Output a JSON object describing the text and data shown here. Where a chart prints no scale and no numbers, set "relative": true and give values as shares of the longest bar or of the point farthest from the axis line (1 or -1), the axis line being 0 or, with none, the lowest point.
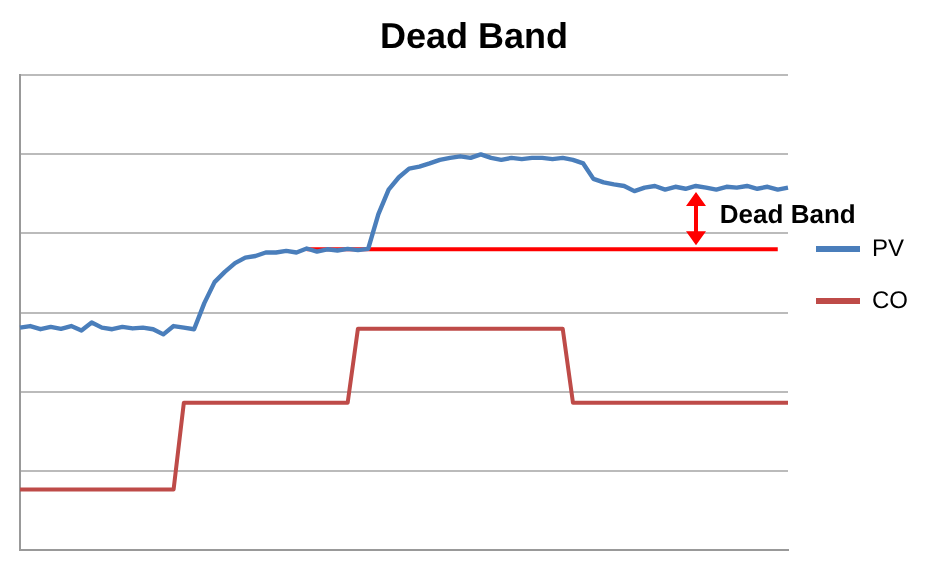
{
  "chart_data": {
    "type": "line",
    "title": "Dead Band",
    "relative": true,
    "grid": "y",
    "legend": "right",
    "marker": "none",
    "line_style": "solid",
    "annotations": [
      "Dead Band"
    ],
    "categories": [
      null,
      null,
      null,
      null,
      null,
      null,
      null,
      null,
      null,
      null,
      null,
      null,
      null,
      null,
      null,
      null,
      null,
      null,
      null,
      null,
      null,
      null,
      null,
      null,
      null,
      null,
      null,
      null,
      null,
      null,
      null,
      null,
      null,
      null,
      null,
      null,
      null,
      null,
      null,
      null,
      null,
      null,
      null,
      null,
      null,
      null,
      null,
      null,
      null,
      null,
      null,
      null,
      null,
      null,
      null,
      null,
      null,
      null,
      null,
      null,
      null,
      null,
      null,
      null,
      null,
      null,
      null,
      null,
      null,
      null,
      null,
      null,
      null,
      null,
      null,
      null
    ],
    "series": [
      {
        "name": "PV",
        "color": "#4a7ebb",
        "values": [
          0.562,
          0.566,
          0.558,
          0.564,
          0.559,
          0.566,
          0.555,
          0.575,
          0.562,
          0.558,
          0.564,
          0.56,
          0.562,
          0.558,
          0.545,
          0.566,
          0.562,
          0.558,
          0.624,
          0.677,
          0.703,
          0.725,
          0.739,
          0.743,
          0.752,
          0.752,
          0.756,
          0.752,
          0.762,
          0.754,
          0.76,
          0.757,
          0.761,
          0.758,
          0.761,
          0.849,
          0.911,
          0.942,
          0.964,
          0.969,
          0.977,
          0.986,
          0.991,
          0.995,
          0.991,
          1.0,
          0.991,
          0.986,
          0.991,
          0.988,
          0.991,
          0.991,
          0.988,
          0.991,
          0.986,
          0.977,
          0.938,
          0.929,
          0.924,
          0.92,
          0.907,
          0.916,
          0.92,
          0.911,
          0.918,
          0.913,
          0.92,
          0.916,
          0.911,
          0.918,
          0.916,
          0.92,
          0.913,
          0.918,
          0.911,
          0.916
        ]
      },
      {
        "name": "CO",
        "color": "#be4b48",
        "values": [
          0.153,
          0.153,
          0.153,
          0.153,
          0.153,
          0.153,
          0.153,
          0.153,
          0.153,
          0.153,
          0.153,
          0.153,
          0.153,
          0.153,
          0.153,
          0.153,
          0.372,
          0.372,
          0.372,
          0.372,
          0.372,
          0.372,
          0.372,
          0.372,
          0.372,
          0.372,
          0.372,
          0.372,
          0.372,
          0.372,
          0.372,
          0.372,
          0.372,
          0.559,
          0.559,
          0.559,
          0.559,
          0.559,
          0.559,
          0.559,
          0.559,
          0.559,
          0.559,
          0.559,
          0.559,
          0.559,
          0.559,
          0.559,
          0.559,
          0.559,
          0.559,
          0.559,
          0.559,
          0.559,
          0.372,
          0.372,
          0.372,
          0.372,
          0.372,
          0.372,
          0.372,
          0.372,
          0.372,
          0.372,
          0.372,
          0.372,
          0.372,
          0.372,
          0.372,
          0.372,
          0.372,
          0.372,
          0.372,
          0.372,
          0.372,
          0.372
        ]
      },
      {
        "type": "line",
        "color": "#ff0000",
        "values": [
          null,
          null,
          null,
          null,
          null,
          null,
          null,
          null,
          null,
          null,
          null,
          null,
          null,
          null,
          null,
          null,
          null,
          null,
          null,
          null,
          null,
          null,
          null,
          null,
          null,
          null,
          null,
          null,
          0.76,
          0.76,
          0.76,
          0.76,
          0.76,
          0.76,
          0.76,
          0.76,
          0.76,
          0.76,
          0.76,
          0.76,
          0.76,
          0.76,
          0.76,
          0.76,
          0.76,
          0.76,
          0.76,
          0.76,
          0.76,
          0.76,
          0.76,
          0.76,
          0.76,
          0.76,
          0.76,
          0.76,
          0.76,
          0.76,
          0.76,
          0.76,
          0.76,
          0.76,
          0.76,
          0.76,
          0.76,
          0.76,
          0.76,
          0.76,
          0.76,
          0.76,
          0.76,
          0.76,
          0.76,
          0.76,
          0.76,
          null
        ]
      }
    ]
  }
}
